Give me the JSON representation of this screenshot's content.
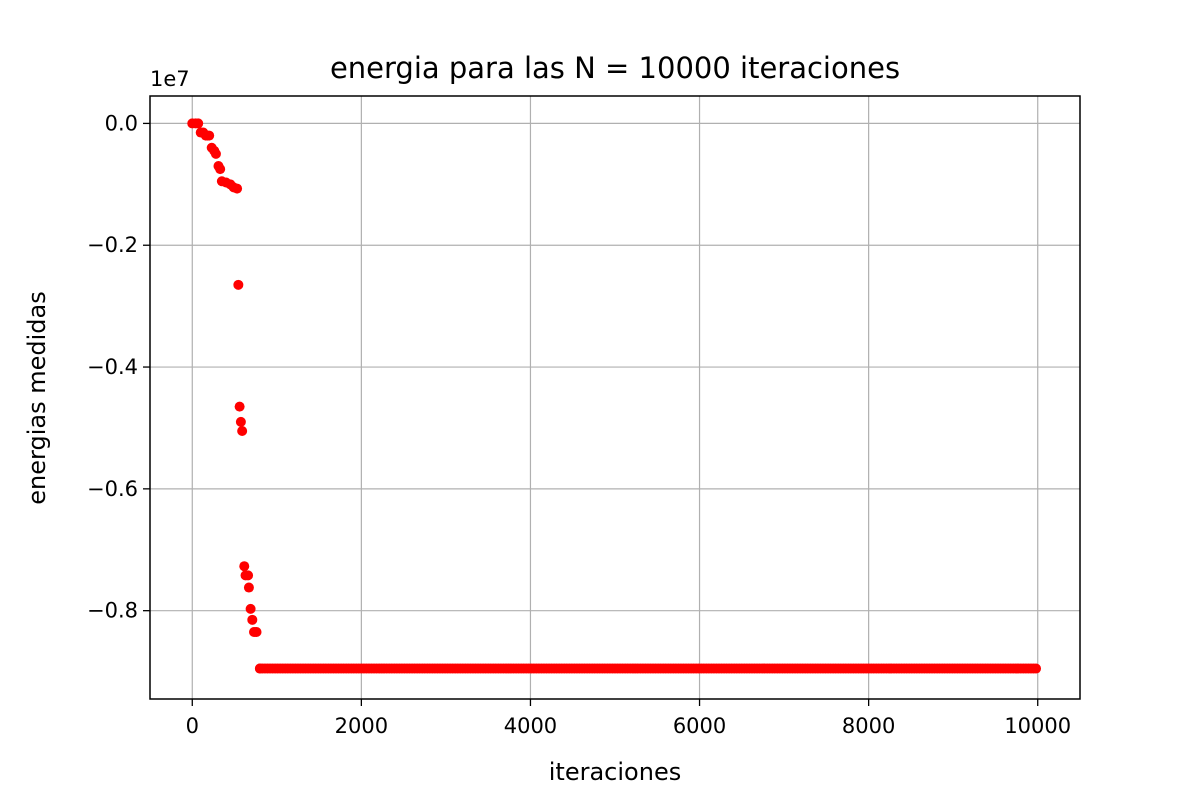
{
  "chart_data": {
    "type": "scatter",
    "title": "energia para las N = 10000 iteraciones",
    "xlabel": "iteraciones",
    "ylabel": "energias medidas",
    "y_offset_label": "1e7",
    "xlim": [
      -500,
      10500
    ],
    "ylim": [
      -0.945,
      0.045
    ],
    "grid": true,
    "marker_color": "#ff0000",
    "x_ticks": [
      {
        "value": 0,
        "label": "0"
      },
      {
        "value": 2000,
        "label": "2000"
      },
      {
        "value": 4000,
        "label": "4000"
      },
      {
        "value": 6000,
        "label": "6000"
      },
      {
        "value": 8000,
        "label": "8000"
      },
      {
        "value": 10000,
        "label": "10000"
      }
    ],
    "y_ticks": [
      {
        "value": 0.0,
        "label": "0.0"
      },
      {
        "value": -0.2,
        "label": "−0.2"
      },
      {
        "value": -0.4,
        "label": "−0.4"
      },
      {
        "value": -0.6,
        "label": "−0.6"
      },
      {
        "value": -0.8,
        "label": "−0.8"
      }
    ],
    "series": [
      {
        "points": [
          [
            0,
            0.0
          ],
          [
            40,
            0.0
          ],
          [
            70,
            0.0
          ],
          [
            100,
            -0.015
          ],
          [
            130,
            -0.015
          ],
          [
            160,
            -0.02
          ],
          [
            180,
            -0.02
          ],
          [
            200,
            -0.02
          ],
          [
            230,
            -0.04
          ],
          [
            260,
            -0.045
          ],
          [
            280,
            -0.05
          ],
          [
            310,
            -0.07
          ],
          [
            330,
            -0.075
          ],
          [
            350,
            -0.095
          ],
          [
            400,
            -0.097
          ],
          [
            450,
            -0.1
          ],
          [
            490,
            -0.105
          ],
          [
            530,
            -0.107
          ],
          [
            545,
            -0.265
          ],
          [
            560,
            -0.465
          ],
          [
            575,
            -0.49
          ],
          [
            590,
            -0.505
          ],
          [
            615,
            -0.727
          ],
          [
            630,
            -0.742
          ],
          [
            660,
            -0.742
          ],
          [
            670,
            -0.762
          ],
          [
            690,
            -0.797
          ],
          [
            710,
            -0.815
          ],
          [
            730,
            -0.835
          ],
          [
            760,
            -0.835
          ],
          [
            800,
            -0.895
          ]
        ],
        "flat_segment": {
          "x_start": 800,
          "x_end": 10000,
          "step": 30,
          "y": -0.895
        }
      }
    ]
  }
}
